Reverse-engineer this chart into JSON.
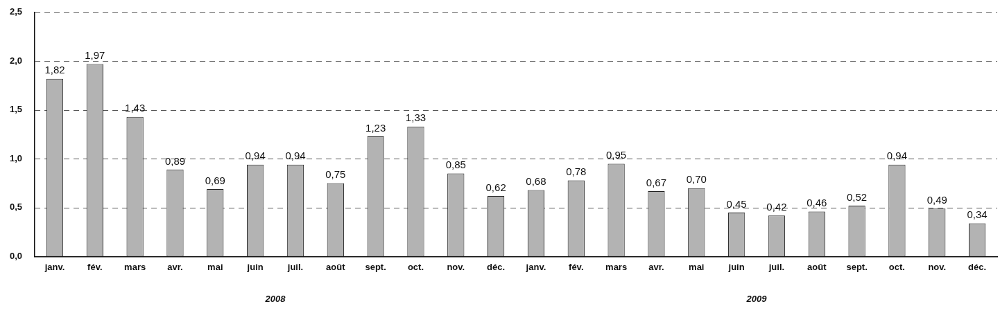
{
  "chart_data": {
    "type": "bar",
    "categories": [
      "janv.",
      "fév.",
      "mars",
      "avr.",
      "mai",
      "juin",
      "juil.",
      "août",
      "sept.",
      "oct.",
      "nov.",
      "déc.",
      "janv.",
      "fév.",
      "mars",
      "avr.",
      "mai",
      "juin",
      "juil.",
      "août",
      "sept.",
      "oct.",
      "nov.",
      "déc."
    ],
    "values": [
      1.82,
      1.97,
      1.43,
      0.89,
      0.69,
      0.94,
      0.94,
      0.75,
      1.23,
      1.33,
      0.85,
      0.62,
      0.68,
      0.78,
      0.95,
      0.67,
      0.7,
      0.45,
      0.42,
      0.46,
      0.52,
      0.94,
      0.49,
      0.34
    ],
    "value_labels": [
      "1,82",
      "1,97",
      "1,43",
      "0,89",
      "0,69",
      "0,94",
      "0,94",
      "0,75",
      "1,23",
      "1,33",
      "0,85",
      "0,62",
      "0,68",
      "0,78",
      "0,95",
      "0,67",
      "0,70",
      "0,45",
      "0,42",
      "0,46",
      "0,52",
      "0,94",
      "0,49",
      "0,34"
    ],
    "color": "#b3b3b3",
    "ylim": [
      0,
      2.5
    ],
    "yticks": [
      {
        "value": 0,
        "label": "0,0"
      },
      {
        "value": 0.5,
        "label": "0,5"
      },
      {
        "value": 1,
        "label": "1,0"
      },
      {
        "value": 1.5,
        "label": "1,5"
      },
      {
        "value": 2,
        "label": "2,0"
      },
      {
        "value": 2.5,
        "label": "2,5"
      }
    ],
    "grid": "y",
    "legend": false,
    "annotations": [
      "2008",
      "2009"
    ]
  }
}
